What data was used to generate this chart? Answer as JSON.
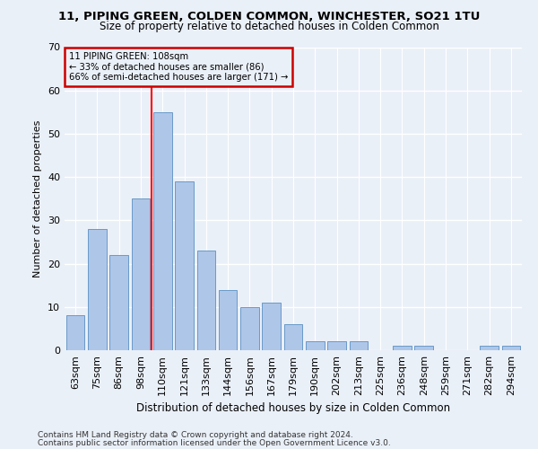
{
  "title": "11, PIPING GREEN, COLDEN COMMON, WINCHESTER, SO21 1TU",
  "subtitle": "Size of property relative to detached houses in Colden Common",
  "xlabel": "Distribution of detached houses by size in Colden Common",
  "ylabel": "Number of detached properties",
  "categories": [
    "63sqm",
    "75sqm",
    "86sqm",
    "98sqm",
    "110sqm",
    "121sqm",
    "133sqm",
    "144sqm",
    "156sqm",
    "167sqm",
    "179sqm",
    "190sqm",
    "202sqm",
    "213sqm",
    "225sqm",
    "236sqm",
    "248sqm",
    "259sqm",
    "271sqm",
    "282sqm",
    "294sqm"
  ],
  "values": [
    8,
    28,
    22,
    35,
    55,
    39,
    23,
    14,
    10,
    11,
    6,
    2,
    2,
    2,
    0,
    1,
    1,
    0,
    0,
    1,
    1
  ],
  "bar_color": "#aec6e8",
  "bar_edge_color": "#5a8fc2",
  "bg_color": "#eaf0f8",
  "grid_color": "#ffffff",
  "vline_x_index": 4,
  "annotation_line1": "11 PIPING GREEN: 108sqm",
  "annotation_line2": "← 33% of detached houses are smaller (86)",
  "annotation_line3": "66% of semi-detached houses are larger (171) →",
  "annotation_box_color": "#cc0000",
  "ylim": [
    0,
    70
  ],
  "yticks": [
    0,
    10,
    20,
    30,
    40,
    50,
    60,
    70
  ],
  "footer1": "Contains HM Land Registry data © Crown copyright and database right 2024.",
  "footer2": "Contains public sector information licensed under the Open Government Licence v3.0."
}
